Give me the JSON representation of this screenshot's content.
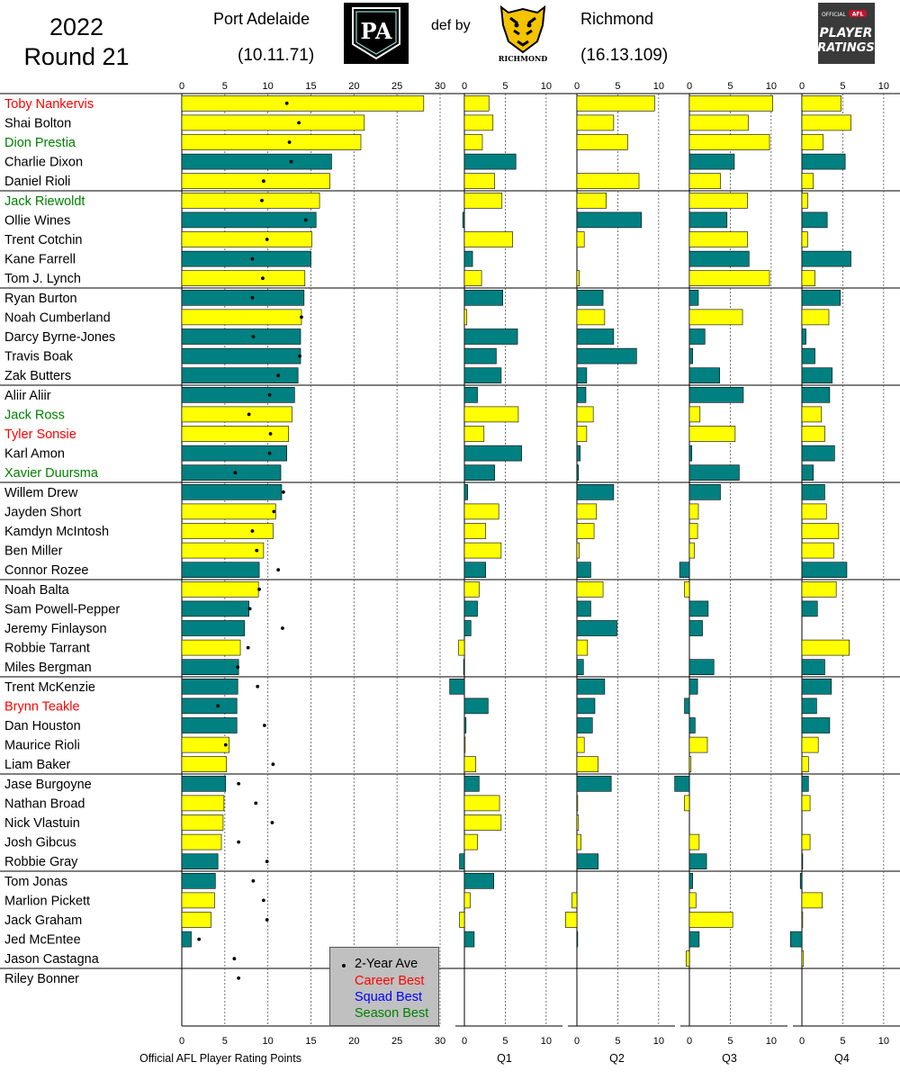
{
  "header": {
    "year": "2022",
    "round": "Round 21",
    "home_team": "Port Adelaide",
    "home_score": "(10.11.71)",
    "result": "def by",
    "away_team": "Richmond",
    "away_score": "(16.13.109)",
    "port_logo_text": "PA",
    "richmond_logo_text": "RICHMOND",
    "ratings_logo": {
      "official": "OFFICIAL",
      "brand": "AFL",
      "line1": "PLAYER",
      "line2": "RATINGS"
    }
  },
  "colors": {
    "richmond": "#ffff00",
    "port": "#008080",
    "dot": "#000000",
    "career_best": "#ff0000",
    "squad_best": "#0000ff",
    "season_best": "#008000"
  },
  "legend": {
    "average": "2-Year Ave",
    "career": "Career Best",
    "squad": "Squad Best",
    "season": "Season Best"
  },
  "chart_data": {
    "type": "bar",
    "orientation": "horizontal",
    "xlabel": "Official AFL Player Rating Points",
    "total_axis": {
      "xlim": [
        0,
        30
      ],
      "ticks": [
        0,
        5,
        10,
        15,
        20,
        25,
        30
      ]
    },
    "quarter_axis": {
      "xlim": [
        -1.5,
        12
      ],
      "ticks": [
        0,
        5,
        10
      ]
    },
    "quarters": [
      "Q1",
      "Q2",
      "Q3",
      "Q4"
    ],
    "group_size": 5,
    "players": [
      {
        "name": "Toby Nankervis",
        "team": "Richmond",
        "highlight": "career",
        "total": 28.1,
        "avg": 12.2,
        "q": [
          3.0,
          9.5,
          10.2,
          4.8
        ]
      },
      {
        "name": "Shai Bolton",
        "team": "Richmond",
        "highlight": "",
        "total": 21.2,
        "avg": 13.6,
        "q": [
          3.5,
          4.5,
          7.2,
          6.0
        ]
      },
      {
        "name": "Dion Prestia",
        "team": "Richmond",
        "highlight": "season",
        "total": 20.8,
        "avg": 12.5,
        "q": [
          2.2,
          6.2,
          9.8,
          2.6
        ]
      },
      {
        "name": "Charlie Dixon",
        "team": "Port Adelaide",
        "highlight": "",
        "total": 17.4,
        "avg": 12.7,
        "q": [
          6.3,
          0.0,
          5.5,
          5.3
        ]
      },
      {
        "name": "Daniel Rioli",
        "team": "Richmond",
        "highlight": "",
        "total": 17.2,
        "avg": 9.5,
        "q": [
          3.7,
          7.6,
          3.8,
          1.4
        ]
      },
      {
        "name": "Jack Riewoldt",
        "team": "Richmond",
        "highlight": "season",
        "total": 16.0,
        "avg": 9.3,
        "q": [
          4.6,
          3.6,
          7.1,
          0.7
        ]
      },
      {
        "name": "Ollie Wines",
        "team": "Port Adelaide",
        "highlight": "",
        "total": 15.6,
        "avg": 14.4,
        "q": [
          -0.2,
          7.9,
          4.6,
          3.1
        ]
      },
      {
        "name": "Trent Cotchin",
        "team": "Richmond",
        "highlight": "",
        "total": 15.1,
        "avg": 9.9,
        "q": [
          5.9,
          0.9,
          7.1,
          0.7
        ]
      },
      {
        "name": "Kane Farrell",
        "team": "Port Adelaide",
        "highlight": "",
        "total": 15.0,
        "avg": 8.2,
        "q": [
          1.0,
          0.0,
          7.3,
          6.0
        ]
      },
      {
        "name": "Tom J. Lynch",
        "team": "Richmond",
        "highlight": "",
        "total": 14.3,
        "avg": 9.4,
        "q": [
          2.1,
          0.3,
          9.8,
          1.6
        ]
      },
      {
        "name": "Ryan Burton",
        "team": "Port Adelaide",
        "highlight": "",
        "total": 14.2,
        "avg": 8.2,
        "q": [
          4.7,
          3.2,
          1.1,
          4.7
        ]
      },
      {
        "name": "Noah Cumberland",
        "team": "Richmond",
        "highlight": "",
        "total": 13.9,
        "avg": 13.9,
        "q": [
          0.3,
          3.4,
          6.5,
          3.3
        ]
      },
      {
        "name": "Darcy Byrne-Jones",
        "team": "Port Adelaide",
        "highlight": "",
        "total": 13.8,
        "avg": 8.3,
        "q": [
          6.5,
          4.5,
          1.9,
          0.5
        ]
      },
      {
        "name": "Travis Boak",
        "team": "Port Adelaide",
        "highlight": "",
        "total": 13.8,
        "avg": 13.7,
        "q": [
          3.9,
          7.3,
          0.4,
          1.6
        ]
      },
      {
        "name": "Zak Butters",
        "team": "Port Adelaide",
        "highlight": "",
        "total": 13.5,
        "avg": 11.2,
        "q": [
          4.5,
          1.2,
          3.7,
          3.7
        ]
      },
      {
        "name": "Aliir Aliir",
        "team": "Port Adelaide",
        "highlight": "",
        "total": 13.1,
        "avg": 10.2,
        "q": [
          1.6,
          1.1,
          6.6,
          3.4
        ]
      },
      {
        "name": "Jack Ross",
        "team": "Richmond",
        "highlight": "season",
        "total": 12.8,
        "avg": 7.8,
        "q": [
          6.6,
          2.0,
          1.3,
          2.4
        ]
      },
      {
        "name": "Tyler Sonsie",
        "team": "Richmond",
        "highlight": "career",
        "total": 12.4,
        "avg": 10.3,
        "q": [
          2.4,
          1.2,
          5.6,
          2.8
        ]
      },
      {
        "name": "Karl Amon",
        "team": "Port Adelaide",
        "highlight": "",
        "total": 12.2,
        "avg": 10.2,
        "q": [
          7.0,
          0.4,
          0.3,
          4.0
        ]
      },
      {
        "name": "Xavier Duursma",
        "team": "Port Adelaide",
        "highlight": "season",
        "total": 11.5,
        "avg": 6.2,
        "q": [
          3.7,
          0.2,
          6.1,
          1.4
        ]
      },
      {
        "name": "Willem Drew",
        "team": "Port Adelaide",
        "highlight": "",
        "total": 11.6,
        "avg": 11.8,
        "q": [
          0.4,
          4.5,
          3.8,
          2.8
        ]
      },
      {
        "name": "Jayden Short",
        "team": "Richmond",
        "highlight": "",
        "total": 10.9,
        "avg": 10.7,
        "q": [
          4.2,
          2.4,
          1.1,
          3.0
        ]
      },
      {
        "name": "Kamdyn McIntosh",
        "team": "Richmond",
        "highlight": "",
        "total": 10.6,
        "avg": 8.2,
        "q": [
          2.6,
          2.1,
          1.0,
          4.5
        ]
      },
      {
        "name": "Ben Miller",
        "team": "Richmond",
        "highlight": "",
        "total": 9.5,
        "avg": 8.7,
        "q": [
          4.5,
          0.3,
          0.6,
          3.9
        ]
      },
      {
        "name": "Connor Rozee",
        "team": "Port Adelaide",
        "highlight": "",
        "total": 9.0,
        "avg": 11.2,
        "q": [
          2.6,
          1.7,
          -1.2,
          5.5
        ]
      },
      {
        "name": "Noah Balta",
        "team": "Richmond",
        "highlight": "",
        "total": 8.9,
        "avg": 9.0,
        "q": [
          1.8,
          3.2,
          -0.6,
          4.2
        ]
      },
      {
        "name": "Sam Powell-Pepper",
        "team": "Port Adelaide",
        "highlight": "",
        "total": 7.8,
        "avg": 7.9,
        "q": [
          1.6,
          1.7,
          2.3,
          1.9
        ]
      },
      {
        "name": "Jeremy Finlayson",
        "team": "Port Adelaide",
        "highlight": "",
        "total": 7.3,
        "avg": 11.7,
        "q": [
          0.8,
          4.9,
          1.6,
          0.0
        ]
      },
      {
        "name": "Robbie Tarrant",
        "team": "Richmond",
        "highlight": "",
        "total": 6.8,
        "avg": 7.7,
        "q": [
          -0.7,
          1.3,
          0.0,
          5.8
        ]
      },
      {
        "name": "Miles Bergman",
        "team": "Port Adelaide",
        "highlight": "",
        "total": 6.6,
        "avg": 6.5,
        "q": [
          -0.1,
          0.8,
          3.0,
          2.8
        ]
      },
      {
        "name": "Trent McKenzie",
        "team": "Port Adelaide",
        "highlight": "",
        "total": 6.5,
        "avg": 8.8,
        "q": [
          -1.8,
          3.4,
          1.0,
          3.6
        ]
      },
      {
        "name": "Brynn Teakle",
        "team": "Port Adelaide",
        "highlight": "career",
        "total": 6.4,
        "avg": 4.2,
        "q": [
          2.9,
          2.2,
          -0.6,
          1.8
        ]
      },
      {
        "name": "Dan Houston",
        "team": "Port Adelaide",
        "highlight": "",
        "total": 6.4,
        "avg": 9.6,
        "q": [
          0.2,
          1.9,
          0.7,
          3.4
        ]
      },
      {
        "name": "Maurice Rioli",
        "team": "Richmond",
        "highlight": "",
        "total": 5.5,
        "avg": 5.1,
        "q": [
          0.1,
          0.9,
          2.2,
          2.0
        ]
      },
      {
        "name": "Liam Baker",
        "team": "Richmond",
        "highlight": "",
        "total": 5.2,
        "avg": 10.6,
        "q": [
          1.4,
          2.6,
          0.2,
          0.8
        ]
      },
      {
        "name": "Jase Burgoyne",
        "team": "Port Adelaide",
        "highlight": "",
        "total": 5.1,
        "avg": 6.6,
        "q": [
          1.8,
          4.2,
          -1.8,
          0.8
        ]
      },
      {
        "name": "Nathan Broad",
        "team": "Richmond",
        "highlight": "",
        "total": 4.9,
        "avg": 8.6,
        "q": [
          4.3,
          0.1,
          -0.6,
          1.0
        ]
      },
      {
        "name": "Nick Vlastuin",
        "team": "Richmond",
        "highlight": "",
        "total": 4.8,
        "avg": 10.5,
        "q": [
          4.5,
          0.2,
          0.0,
          0.0
        ]
      },
      {
        "name": "Josh Gibcus",
        "team": "Richmond",
        "highlight": "",
        "total": 4.6,
        "avg": 6.6,
        "q": [
          1.6,
          0.5,
          1.2,
          1.0
        ]
      },
      {
        "name": "Robbie Gray",
        "team": "Port Adelaide",
        "highlight": "",
        "total": 4.2,
        "avg": 9.9,
        "q": [
          -0.6,
          2.6,
          2.1,
          0.1
        ]
      },
      {
        "name": "Tom Jonas",
        "team": "Port Adelaide",
        "highlight": "",
        "total": 3.9,
        "avg": 8.3,
        "q": [
          3.6,
          0.0,
          0.4,
          -0.2
        ]
      },
      {
        "name": "Marlion Pickett",
        "team": "Richmond",
        "highlight": "",
        "total": 3.8,
        "avg": 9.5,
        "q": [
          0.7,
          -0.6,
          0.8,
          2.5
        ]
      },
      {
        "name": "Jack Graham",
        "team": "Richmond",
        "highlight": "",
        "total": 3.4,
        "avg": 9.9,
        "q": [
          -0.6,
          -1.4,
          5.3,
          0.1
        ]
      },
      {
        "name": "Jed McEntee",
        "team": "Port Adelaide",
        "highlight": "",
        "total": 1.1,
        "avg": 2.0,
        "q": [
          1.2,
          0.1,
          1.2,
          -1.4
        ]
      },
      {
        "name": "Jason Castagna",
        "team": "Richmond",
        "highlight": "",
        "total": 0.0,
        "avg": 6.1,
        "q": [
          0.0,
          0.0,
          -0.4,
          0.2
        ]
      },
      {
        "name": "Riley Bonner",
        "team": "Port Adelaide",
        "highlight": "",
        "total": 0.0,
        "avg": 6.6,
        "q": [
          0.0,
          0.0,
          0.0,
          0.0
        ]
      }
    ]
  }
}
